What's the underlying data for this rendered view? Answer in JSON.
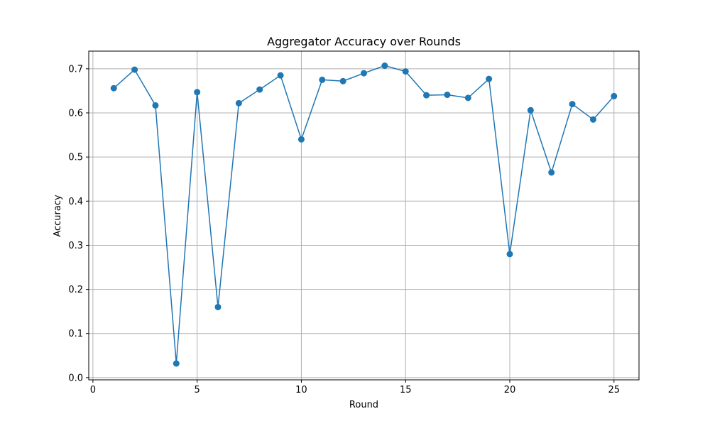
{
  "chart_data": {
    "type": "line",
    "title": "Aggregator Accuracy over Rounds",
    "xlabel": "Round",
    "ylabel": "Accuracy",
    "xlim": [
      -0.2,
      26.2
    ],
    "ylim": [
      -0.005,
      0.74
    ],
    "xticks": [
      0,
      5,
      10,
      15,
      20,
      25
    ],
    "xtick_labels": [
      "0",
      "5",
      "10",
      "15",
      "20",
      "25"
    ],
    "yticks": [
      0.0,
      0.1,
      0.2,
      0.3,
      0.4,
      0.5,
      0.6,
      0.7
    ],
    "ytick_labels": [
      "0.0",
      "0.1",
      "0.2",
      "0.3",
      "0.4",
      "0.5",
      "0.6",
      "0.7"
    ],
    "grid": true,
    "marker": "circle",
    "color": "#1f77b4",
    "x": [
      1,
      2,
      3,
      4,
      5,
      6,
      7,
      8,
      9,
      10,
      11,
      12,
      13,
      14,
      15,
      16,
      17,
      18,
      19,
      20,
      21,
      22,
      23,
      24,
      25
    ],
    "y": [
      0.656,
      0.698,
      0.617,
      0.032,
      0.647,
      0.16,
      0.622,
      0.653,
      0.685,
      0.54,
      0.675,
      0.672,
      0.69,
      0.707,
      0.694,
      0.64,
      0.641,
      0.634,
      0.677,
      0.28,
      0.606,
      0.465,
      0.62,
      0.585,
      0.638
    ]
  }
}
